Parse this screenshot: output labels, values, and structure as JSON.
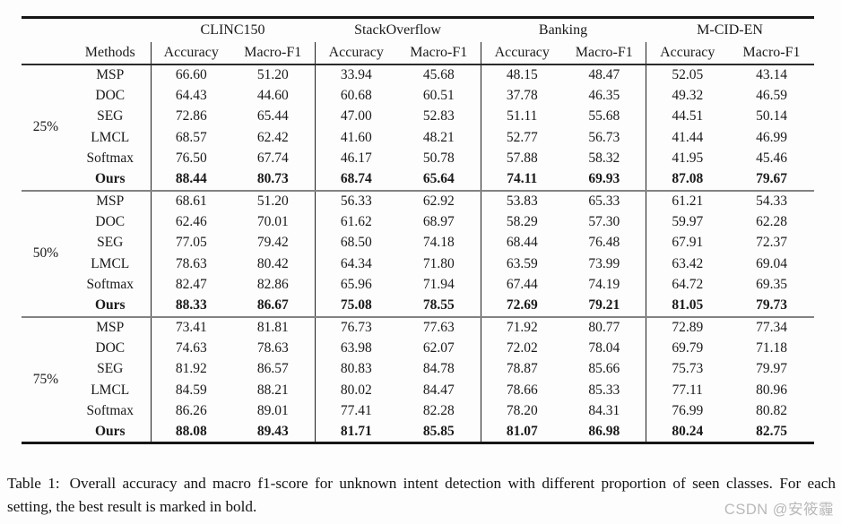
{
  "table": {
    "groups": [
      "CLINC150",
      "StackOverflow",
      "Banking",
      "M-CID-EN"
    ],
    "methods_header": "Methods",
    "sub_headers": [
      "Accuracy",
      "Macro-F1"
    ],
    "blocks": [
      {
        "proportion": "25%",
        "rows": [
          {
            "method": "MSP",
            "bold": false,
            "values": [
              "66.60",
              "51.20",
              "33.94",
              "45.68",
              "48.15",
              "48.47",
              "52.05",
              "43.14"
            ]
          },
          {
            "method": "DOC",
            "bold": false,
            "values": [
              "64.43",
              "44.60",
              "60.68",
              "60.51",
              "37.78",
              "46.35",
              "49.32",
              "46.59"
            ]
          },
          {
            "method": "SEG",
            "bold": false,
            "values": [
              "72.86",
              "65.44",
              "47.00",
              "52.83",
              "51.11",
              "55.68",
              "44.51",
              "50.14"
            ]
          },
          {
            "method": "LMCL",
            "bold": false,
            "values": [
              "68.57",
              "62.42",
              "41.60",
              "48.21",
              "52.77",
              "56.73",
              "41.44",
              "46.99"
            ]
          },
          {
            "method": "Softmax",
            "bold": false,
            "values": [
              "76.50",
              "67.74",
              "46.17",
              "50.78",
              "57.88",
              "58.32",
              "41.95",
              "45.46"
            ]
          },
          {
            "method": "Ours",
            "bold": true,
            "values": [
              "88.44",
              "80.73",
              "68.74",
              "65.64",
              "74.11",
              "69.93",
              "87.08",
              "79.67"
            ]
          }
        ]
      },
      {
        "proportion": "50%",
        "rows": [
          {
            "method": "MSP",
            "bold": false,
            "values": [
              "68.61",
              "51.20",
              "56.33",
              "62.92",
              "53.83",
              "65.33",
              "61.21",
              "54.33"
            ]
          },
          {
            "method": "DOC",
            "bold": false,
            "values": [
              "62.46",
              "70.01",
              "61.62",
              "68.97",
              "58.29",
              "57.30",
              "59.97",
              "62.28"
            ]
          },
          {
            "method": "SEG",
            "bold": false,
            "values": [
              "77.05",
              "79.42",
              "68.50",
              "74.18",
              "68.44",
              "76.48",
              "67.91",
              "72.37"
            ]
          },
          {
            "method": "LMCL",
            "bold": false,
            "values": [
              "78.63",
              "80.42",
              "64.34",
              "71.80",
              "63.59",
              "73.99",
              "63.42",
              "69.04"
            ]
          },
          {
            "method": "Softmax",
            "bold": false,
            "values": [
              "82.47",
              "82.86",
              "65.96",
              "71.94",
              "67.44",
              "74.19",
              "64.72",
              "69.35"
            ]
          },
          {
            "method": "Ours",
            "bold": true,
            "values": [
              "88.33",
              "86.67",
              "75.08",
              "78.55",
              "72.69",
              "79.21",
              "81.05",
              "79.73"
            ]
          }
        ]
      },
      {
        "proportion": "75%",
        "rows": [
          {
            "method": "MSP",
            "bold": false,
            "values": [
              "73.41",
              "81.81",
              "76.73",
              "77.63",
              "71.92",
              "80.77",
              "72.89",
              "77.34"
            ]
          },
          {
            "method": "DOC",
            "bold": false,
            "values": [
              "74.63",
              "78.63",
              "63.98",
              "62.07",
              "72.02",
              "78.04",
              "69.79",
              "71.18"
            ]
          },
          {
            "method": "SEG",
            "bold": false,
            "values": [
              "81.92",
              "86.57",
              "80.83",
              "84.78",
              "78.87",
              "85.66",
              "75.73",
              "79.97"
            ]
          },
          {
            "method": "LMCL",
            "bold": false,
            "values": [
              "84.59",
              "88.21",
              "80.02",
              "84.47",
              "78.66",
              "85.33",
              "77.11",
              "80.96"
            ]
          },
          {
            "method": "Softmax",
            "bold": false,
            "values": [
              "86.26",
              "89.01",
              "77.41",
              "82.28",
              "78.20",
              "84.31",
              "76.99",
              "80.82"
            ]
          },
          {
            "method": "Ours",
            "bold": true,
            "values": [
              "88.08",
              "89.43",
              "81.71",
              "85.85",
              "81.07",
              "86.98",
              "80.24",
              "82.75"
            ]
          }
        ]
      }
    ]
  },
  "caption": {
    "label": "Table 1:",
    "text": "Overall accuracy and macro f1-score for unknown intent detection with different proportion of seen classes. For each setting, the best result is marked in bold."
  },
  "watermark": {
    "text": "CSDN @安筱霾",
    "color": "#b9b9b9"
  },
  "colors": {
    "rule_heavy": "#161616",
    "rule_header": "#2b2b2b",
    "rule_separator": "#828282",
    "vertical_rule": "#1f1f1f",
    "text": "#1a1a1a"
  }
}
